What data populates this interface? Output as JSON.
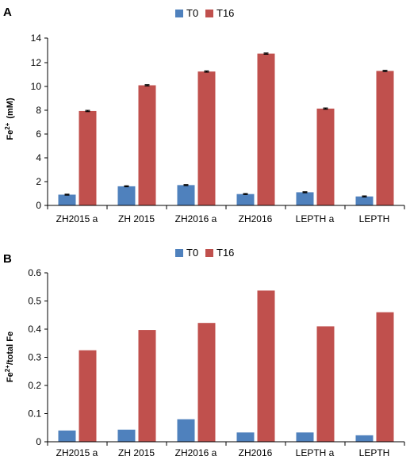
{
  "chart_data": [
    {
      "type": "bar",
      "panel_label": "A",
      "categories": [
        "ZH2015 a",
        "ZH 2015",
        "ZH2016 a",
        "ZH2016",
        "LEPTH a",
        "LEPTH"
      ],
      "series": [
        {
          "name": "T0",
          "values": [
            0.9,
            1.6,
            1.7,
            0.95,
            1.1,
            0.75
          ],
          "errors": [
            0.04,
            0.04,
            0.04,
            0.04,
            0.04,
            0.04
          ]
        },
        {
          "name": "T16",
          "values": [
            7.9,
            10.05,
            11.2,
            12.7,
            8.1,
            11.25
          ],
          "errors": [
            0.05,
            0.05,
            0.05,
            0.05,
            0.05,
            0.05
          ]
        }
      ],
      "ylabel_main": "Fe",
      "ylabel_sup": "2+",
      "ylabel_unit": "(mM)",
      "ylim": [
        0,
        14
      ],
      "yticks": [
        0,
        2,
        4,
        6,
        8,
        10,
        12,
        14
      ],
      "ytick_labels": [
        "0",
        "2",
        "4",
        "6",
        "8",
        "10",
        "12",
        "14"
      ],
      "legend_position": "top-center",
      "grid": false,
      "error_bars": true
    },
    {
      "type": "bar",
      "panel_label": "B",
      "categories": [
        "ZH2015 a",
        "ZH 2015",
        "ZH2016 a",
        "ZH2016",
        "LEPTH a",
        "LEPTH"
      ],
      "series": [
        {
          "name": "T0",
          "values": [
            0.04,
            0.043,
            0.08,
            0.033,
            0.033,
            0.023
          ]
        },
        {
          "name": "T16",
          "values": [
            0.325,
            0.397,
            0.422,
            0.537,
            0.41,
            0.46
          ]
        }
      ],
      "ylabel_main": "Fe",
      "ylabel_sup": "2+",
      "ylabel_unit": "/total Fe",
      "ylim": [
        0,
        0.6
      ],
      "yticks": [
        0,
        0.1,
        0.2,
        0.3,
        0.4,
        0.5,
        0.6
      ],
      "ytick_labels": [
        "0",
        "0.1",
        "0.2",
        "0.3",
        "0.4",
        "0.5",
        "0.6"
      ],
      "legend_position": "top-center",
      "grid": false,
      "error_bars": false
    }
  ],
  "colors": {
    "T0": "#4F81BD",
    "T16": "#C0504D",
    "error": "#000000"
  }
}
